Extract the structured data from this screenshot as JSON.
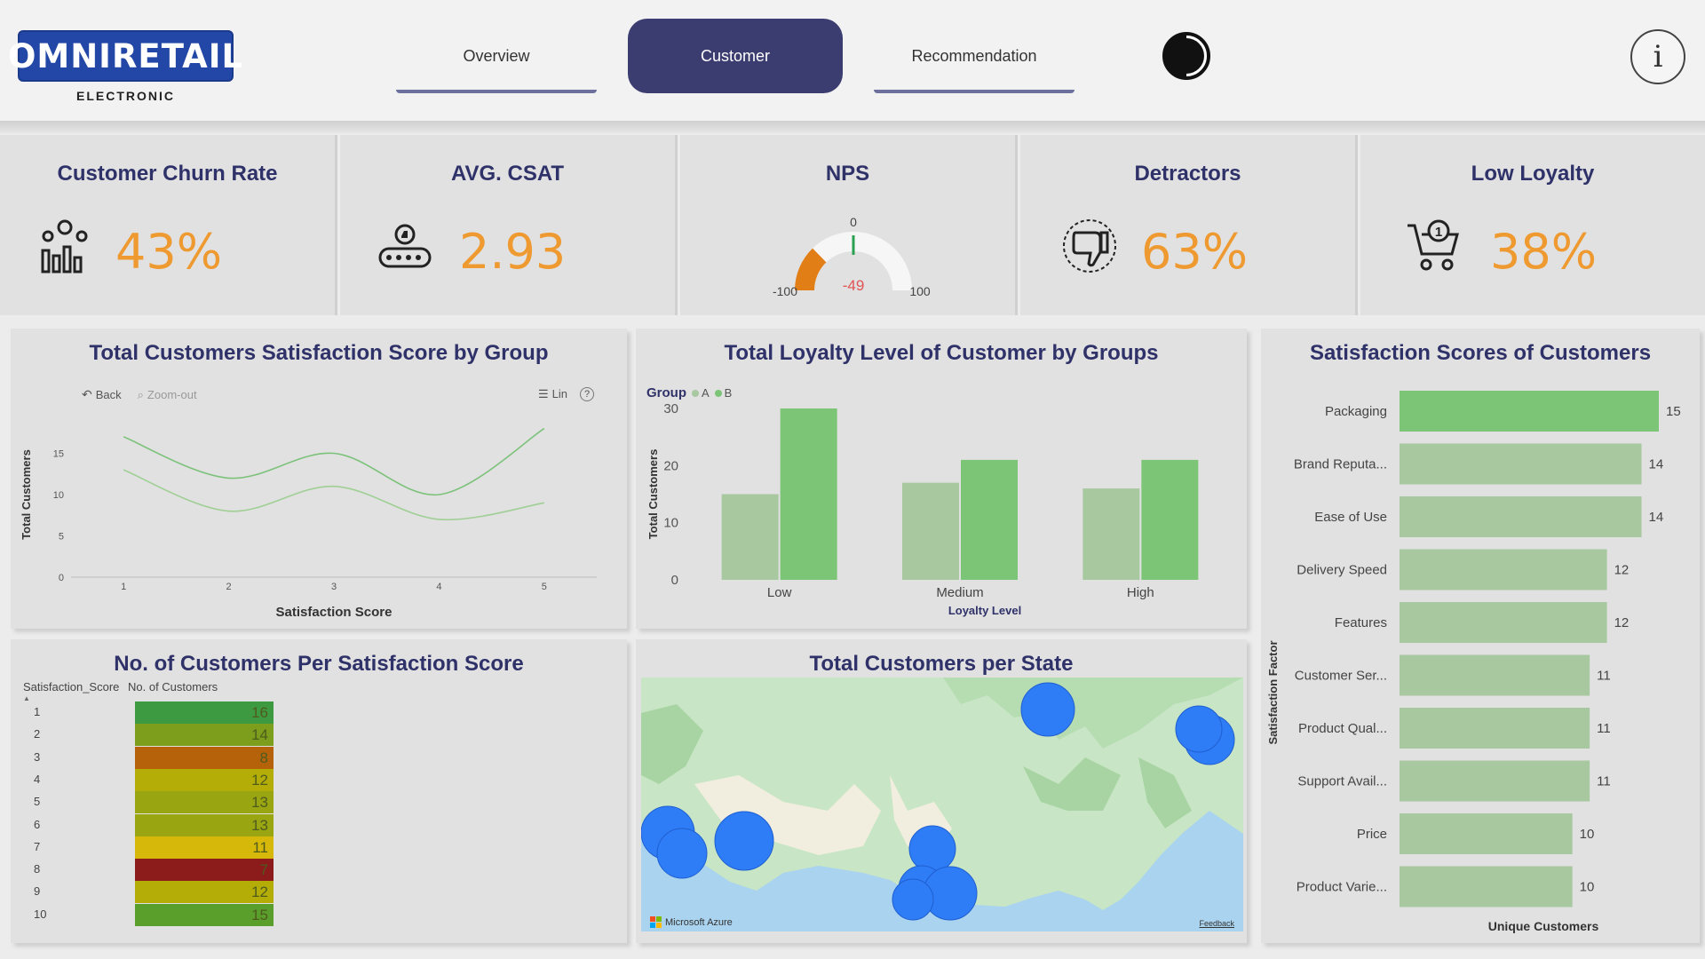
{
  "header": {
    "logo_text": "OMNIRETAIL",
    "logo_sub": "ELECTRONIC",
    "tabs": [
      {
        "label": "Overview",
        "active": false
      },
      {
        "label": "Customer",
        "active": true
      },
      {
        "label": "Recommendation",
        "active": false
      }
    ],
    "theme_icon": "contrast-icon",
    "info_icon": "info-icon",
    "info_glyph": "i"
  },
  "kpis": {
    "churn": {
      "title": "Customer Churn Rate",
      "value": "43%",
      "icon": "people-chart-icon"
    },
    "csat": {
      "title": "AVG. CSAT",
      "value": "2.93",
      "icon": "rating-stars-icon"
    },
    "nps": {
      "title": "NPS",
      "value": "-49",
      "min_label": "-100",
      "max_label": "100",
      "zero_label": "0",
      "value_num": -49
    },
    "detractors": {
      "title": "Detractors",
      "value": "63%",
      "icon": "thumbs-down-icon"
    },
    "low_loyalty": {
      "title": "Low Loyalty",
      "value": "38%",
      "icon": "cart-icon"
    }
  },
  "satisfaction_by_group": {
    "title": "Total Customers Satisfaction Score by Group",
    "toolbar": {
      "back": "Back",
      "zoom_out": "Zoom-out",
      "lin": "Lin",
      "help": "?"
    },
    "chart_data": {
      "type": "line",
      "x": [
        1,
        2,
        3,
        4,
        5
      ],
      "series": [
        {
          "values": [
            17,
            12,
            15,
            10,
            18
          ]
        },
        {
          "values": [
            13,
            8,
            11,
            7,
            9
          ]
        }
      ],
      "xlabel": "Satisfaction Score",
      "ylabel": "Total Customers",
      "yticks": [
        0,
        5,
        10,
        15
      ],
      "ylim": [
        0,
        20
      ],
      "colors": [
        "#7cc27a",
        "#9fcf94"
      ]
    }
  },
  "loyalty_by_group": {
    "title": "Total Loyalty Level of Customer by Groups",
    "legend_title": "Group",
    "chart_data": {
      "type": "bar",
      "categories": [
        "Low",
        "Medium",
        "High"
      ],
      "series": [
        {
          "name": "A",
          "values": [
            15,
            17,
            16
          ],
          "color": "#a8c8a0"
        },
        {
          "name": "B",
          "values": [
            30,
            21,
            21
          ],
          "color": "#7cc576"
        }
      ],
      "xlabel": "Loyalty Level",
      "ylabel": "Total Customers",
      "yticks": [
        0,
        10,
        20,
        30
      ],
      "ylim": [
        0,
        30
      ]
    }
  },
  "customers_per_score": {
    "title": "No. of Customers Per Satisfaction Score",
    "col_score": "Satisfaction_Score",
    "col_count": "No. of Customers",
    "chart_data": {
      "type": "table",
      "rows": [
        {
          "score": "1",
          "count": "16",
          "color": "#3e9a40"
        },
        {
          "score": "2",
          "count": "14",
          "color": "#7c9e1c"
        },
        {
          "score": "3",
          "count": "8",
          "color": "#b5620a"
        },
        {
          "score": "4",
          "count": "12",
          "color": "#b4ad07"
        },
        {
          "score": "5",
          "count": "13",
          "color": "#9aa512"
        },
        {
          "score": "6",
          "count": "13",
          "color": "#9aa512"
        },
        {
          "score": "7",
          "count": "11",
          "color": "#d6b80a"
        },
        {
          "score": "8",
          "count": "7",
          "color": "#8c1c1c"
        },
        {
          "score": "9",
          "count": "12",
          "color": "#b4ad07"
        },
        {
          "score": "10",
          "count": "15",
          "color": "#5a9e2c"
        }
      ]
    }
  },
  "customers_per_state": {
    "title": "Total Customers per State",
    "attribution": "Microsoft Azure",
    "feedback": "Feedback"
  },
  "satisfaction_scores": {
    "title": "Satisfaction Scores of Customers",
    "chart_data": {
      "type": "bar",
      "orientation": "horizontal",
      "categories": [
        "Packaging",
        "Brand Reputa...",
        "Ease of Use",
        "Delivery Speed",
        "Features",
        "Customer Ser...",
        "Product Qual...",
        "Support Avail...",
        "Price",
        "Product Varie..."
      ],
      "values": [
        15,
        14,
        14,
        12,
        12,
        11,
        11,
        11,
        10,
        10
      ],
      "xlabel": "Unique Customers",
      "ylabel": "Satisfaction Factor",
      "colors": {
        "highlight": "#7cc576",
        "normal": "#a8c8a0"
      }
    }
  }
}
